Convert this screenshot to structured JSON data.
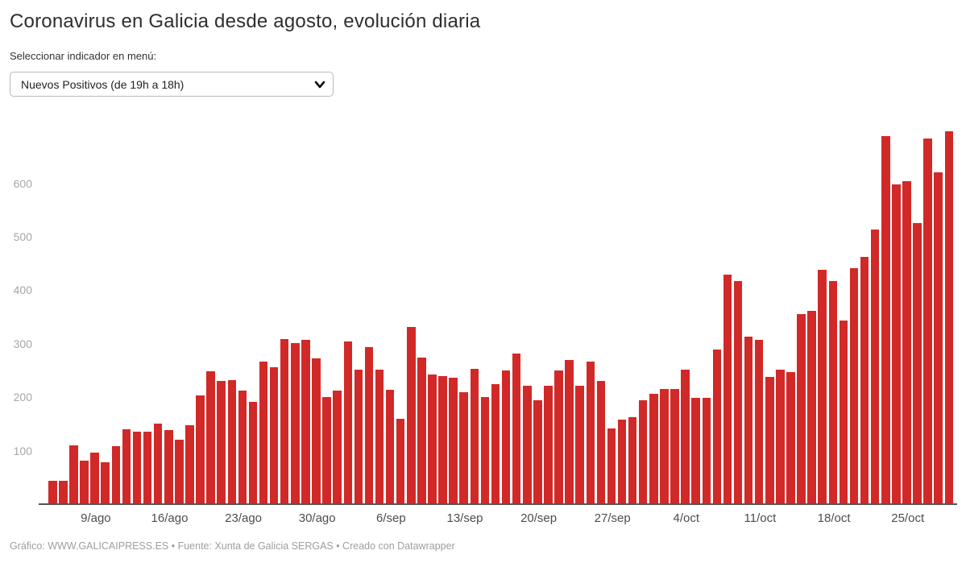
{
  "controls": {
    "select_label": "Seleccionar indicador en menú:",
    "selected_indicator": "Nuevos Positivos (de 19h a 18h)"
  },
  "footer": {
    "text": "Gráfico: WWW.GALICAIPRESS.ES • Fuente: Xunta de Galicia SERGAS • Creado con Datawrapper"
  },
  "chart_data": {
    "type": "bar",
    "title": "Coronavirus en Galicia desde agosto, evolución diaria",
    "bar_color": "#d12928",
    "axis_color": "#545454",
    "grid": "off",
    "ylim": [
      0,
      700
    ],
    "yticks": [
      100,
      200,
      300,
      400,
      500,
      600
    ],
    "categories": [
      "5/ago",
      "6/ago",
      "7/ago",
      "8/ago",
      "9/ago",
      "10/ago",
      "11/ago",
      "12/ago",
      "13/ago",
      "14/ago",
      "15/ago",
      "16/ago",
      "17/ago",
      "18/ago",
      "19/ago",
      "20/ago",
      "21/ago",
      "22/ago",
      "23/ago",
      "24/ago",
      "25/ago",
      "26/ago",
      "27/ago",
      "28/ago",
      "29/ago",
      "30/ago",
      "31/ago",
      "1/sep",
      "2/sep",
      "3/sep",
      "4/sep",
      "5/sep",
      "6/sep",
      "7/sep",
      "8/sep",
      "9/sep",
      "10/sep",
      "11/sep",
      "12/sep",
      "13/sep",
      "14/sep",
      "15/sep",
      "16/sep",
      "17/sep",
      "18/sep",
      "19/sep",
      "20/sep",
      "21/sep",
      "22/sep",
      "23/sep",
      "24/sep",
      "25/sep",
      "26/sep",
      "27/sep",
      "28/sep",
      "29/sep",
      "30/sep",
      "1/oct",
      "2/oct",
      "3/oct",
      "4/oct",
      "5/oct",
      "6/oct",
      "7/oct",
      "8/oct",
      "9/oct",
      "10/oct",
      "11/oct",
      "12/oct",
      "13/oct",
      "14/oct",
      "15/oct",
      "16/oct",
      "17/oct",
      "18/oct",
      "19/oct",
      "20/oct",
      "21/oct",
      "22/oct",
      "23/oct",
      "24/oct",
      "25/oct",
      "26/oct",
      "27/oct",
      "28/oct",
      "29/oct"
    ],
    "values": [
      43,
      43,
      110,
      82,
      96,
      78,
      108,
      140,
      135,
      136,
      151,
      139,
      120,
      148,
      203,
      248,
      230,
      232,
      213,
      192,
      267,
      256,
      309,
      301,
      308,
      272,
      201,
      212,
      305,
      251,
      293,
      251,
      214,
      160,
      332,
      274,
      242,
      240,
      236,
      209,
      253,
      200,
      225,
      250,
      281,
      221,
      194,
      221,
      250,
      270,
      221,
      267,
      231,
      141,
      158,
      162,
      195,
      207,
      215,
      216,
      252,
      199,
      199,
      289,
      429,
      417,
      314,
      307,
      238,
      251,
      247,
      355,
      362,
      439,
      417,
      343,
      442,
      462,
      514,
      688,
      598,
      604,
      526,
      684,
      620,
      698
    ],
    "xticks": [
      {
        "label": "9/ago",
        "index": 4
      },
      {
        "label": "16/ago",
        "index": 11
      },
      {
        "label": "23/ago",
        "index": 18
      },
      {
        "label": "30/ago",
        "index": 25
      },
      {
        "label": "6/sep",
        "index": 32
      },
      {
        "label": "13/sep",
        "index": 39
      },
      {
        "label": "20/sep",
        "index": 46
      },
      {
        "label": "27/sep",
        "index": 53
      },
      {
        "label": "4/oct",
        "index": 60
      },
      {
        "label": "11/oct",
        "index": 67
      },
      {
        "label": "18/oct",
        "index": 74
      },
      {
        "label": "25/oct",
        "index": 81
      }
    ]
  }
}
